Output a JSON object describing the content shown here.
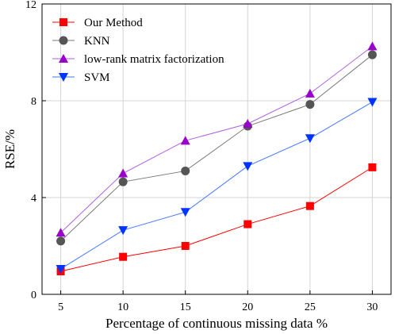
{
  "chart_data": {
    "type": "line",
    "xlabel": "Percentage of continuous missing data %",
    "ylabel": "RSE/%",
    "x": [
      5,
      10,
      15,
      20,
      25,
      30
    ],
    "x_ticks": [
      "5",
      "10",
      "15",
      "20",
      "25",
      "30"
    ],
    "xlim": [
      3.5,
      31.5
    ],
    "ylim": [
      0,
      12
    ],
    "y_ticks": [
      "0",
      "4",
      "8",
      "12"
    ],
    "grid": true,
    "legend_position": "top-left",
    "series": [
      {
        "name": "Our Method",
        "color": "#ff0000",
        "marker": "square",
        "values": [
          0.95,
          1.55,
          2.0,
          2.9,
          3.65,
          5.25
        ]
      },
      {
        "name": "KNN",
        "color": "#555555",
        "line_color": "#7a7a7a",
        "marker": "circle",
        "values": [
          2.2,
          4.65,
          5.1,
          6.95,
          7.85,
          9.9
        ]
      },
      {
        "name": "low-rank matrix factorization",
        "color": "#9a00cc",
        "line_color": "#b060e0",
        "marker": "triangle-up",
        "values": [
          2.55,
          5.0,
          6.35,
          7.05,
          8.3,
          10.25
        ]
      },
      {
        "name": "SVM",
        "color": "#0033ff",
        "line_color": "#4477ff",
        "marker": "triangle-down",
        "values": [
          1.05,
          2.65,
          3.4,
          5.3,
          6.45,
          7.95
        ]
      }
    ]
  }
}
